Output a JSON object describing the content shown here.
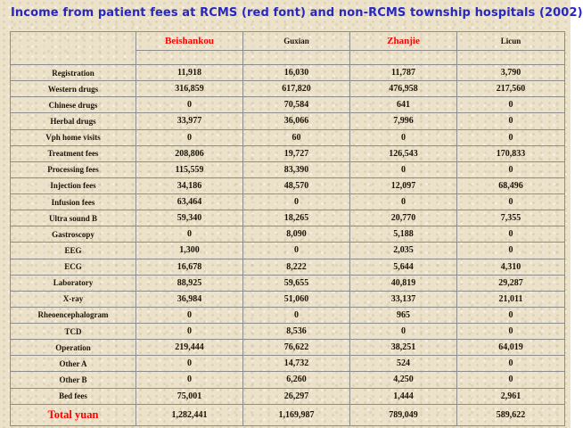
{
  "title": "Income from patient fees at RCMS (red font) and non-RCMS township hospitals (2002)",
  "colors": {
    "background": "#ece2c9",
    "title_blue": "#2828c0",
    "rcms_red": "#ff0000",
    "ink_black": "#1c1408",
    "grid": "#8c8c8c"
  },
  "table": {
    "corner_label": "",
    "columns": [
      {
        "label": "Beishankou",
        "rcms": true
      },
      {
        "label": "Guxian",
        "rcms": false
      },
      {
        "label": "Zhanjie",
        "rcms": true
      },
      {
        "label": "Licun",
        "rcms": false
      }
    ],
    "rows": [
      {
        "label": "Registration",
        "values": [
          "11,918",
          "16,030",
          "11,787",
          "3,790"
        ]
      },
      {
        "label": "Western drugs",
        "values": [
          "316,859",
          "617,820",
          "476,958",
          "217,560"
        ]
      },
      {
        "label": "Chinese drugs",
        "values": [
          "0",
          "70,584",
          "641",
          "0"
        ]
      },
      {
        "label": "Herbal drugs",
        "values": [
          "33,977",
          "36,066",
          "7,996",
          "0"
        ]
      },
      {
        "label": "Vph home visits",
        "values": [
          "0",
          "60",
          "0",
          "0"
        ]
      },
      {
        "label": "Treatment fees",
        "values": [
          "208,806",
          "19,727",
          "126,543",
          "170,833"
        ]
      },
      {
        "label": "Processing fees",
        "values": [
          "115,559",
          "83,390",
          "0",
          "0"
        ]
      },
      {
        "label": "Injection fees",
        "values": [
          "34,186",
          "48,570",
          "12,097",
          "68,496"
        ]
      },
      {
        "label": "Infusion fees",
        "values": [
          "63,464",
          "0",
          "0",
          "0"
        ]
      },
      {
        "label": "Ultra sound B",
        "values": [
          "59,340",
          "18,265",
          "20,770",
          "7,355"
        ]
      },
      {
        "label": "Gastroscopy",
        "values": [
          "0",
          "8,090",
          "5,188",
          "0"
        ]
      },
      {
        "label": "EEG",
        "values": [
          "1,300",
          "0",
          "2,035",
          "0"
        ]
      },
      {
        "label": "ECG",
        "values": [
          "16,678",
          "8,222",
          "5,644",
          "4,310"
        ]
      },
      {
        "label": "Laboratory",
        "values": [
          "88,925",
          "59,655",
          "40,819",
          "29,287"
        ]
      },
      {
        "label": "X-ray",
        "values": [
          "36,984",
          "51,060",
          "33,137",
          "21,011"
        ]
      },
      {
        "label": "Rheoencephalogram",
        "values": [
          "0",
          "0",
          "965",
          "0"
        ]
      },
      {
        "label": "TCD",
        "values": [
          "0",
          "8,536",
          "0",
          "0"
        ]
      },
      {
        "label": "Operation",
        "values": [
          "219,444",
          "76,622",
          "38,251",
          "64,019"
        ]
      },
      {
        "label": "Other A",
        "values": [
          "0",
          "14,732",
          "524",
          "0"
        ]
      },
      {
        "label": "Other B",
        "values": [
          "0",
          "6,260",
          "4,250",
          "0"
        ]
      },
      {
        "label": "Bed fees",
        "values": [
          "75,001",
          "26,297",
          "1,444",
          "2,961"
        ]
      },
      {
        "label": "Total yuan",
        "values": [
          "1,282,441",
          "1,169,987",
          "789,049",
          "589,622"
        ],
        "total": true
      }
    ]
  }
}
